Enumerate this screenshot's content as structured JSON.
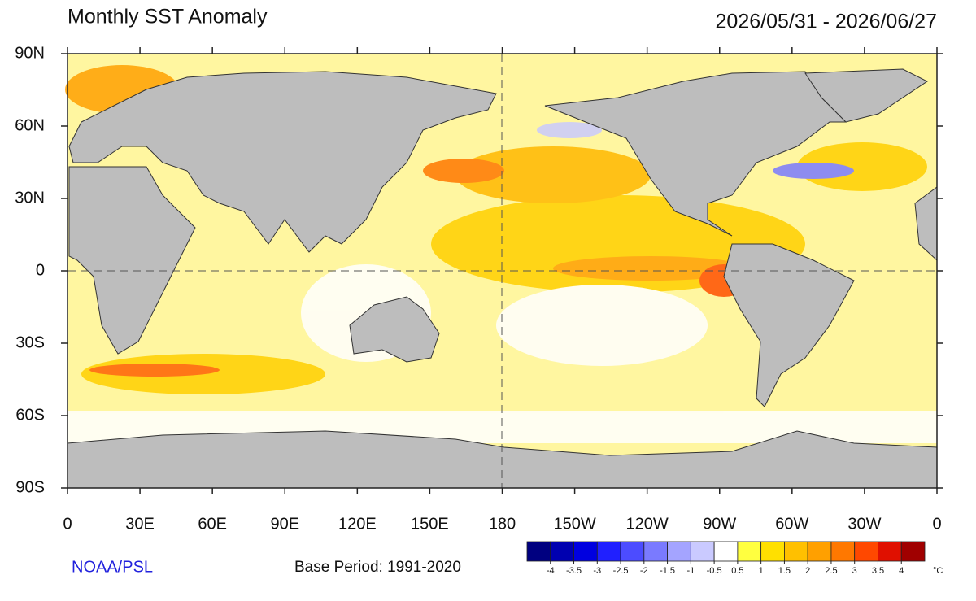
{
  "title": "Monthly SST Anomaly",
  "date_range": "2026/05/31 - 2026/06/27",
  "attribution": "NOAA/PSL",
  "base_period": "Base Period: 1991-2020",
  "map": {
    "lat_range": [
      -90,
      90
    ],
    "lon_range": [
      0,
      360
    ],
    "lat_ticks": [
      {
        "value": 90,
        "label": "90N"
      },
      {
        "value": 60,
        "label": "60N"
      },
      {
        "value": 30,
        "label": "30N"
      },
      0,
      {
        "value": -30,
        "label": "30S"
      },
      {
        "value": -60,
        "label": "60S"
      },
      {
        "value": -90,
        "label": "90S"
      }
    ],
    "lon_ticks": [
      0,
      {
        "value": 30,
        "label": "30E"
      },
      {
        "value": 60,
        "label": "60E"
      },
      {
        "value": 90,
        "label": "90E"
      },
      {
        "value": 120,
        "label": "120E"
      },
      {
        "value": 150,
        "label": "150E"
      },
      180,
      {
        "value": 210,
        "label": "150W"
      },
      {
        "value": 240,
        "label": "120W"
      },
      {
        "value": 270,
        "label": "90W"
      },
      {
        "value": 300,
        "label": "60W"
      },
      {
        "value": 330,
        "label": "30W"
      },
      {
        "value": 360,
        "label": "0"
      }
    ]
  },
  "colorbar": {
    "ticks": [
      -4,
      -3.5,
      -3,
      -2.5,
      -2,
      -1.5,
      -1,
      -0.5,
      0.5,
      1,
      1.5,
      2,
      2.5,
      3,
      3.5,
      4
    ],
    "colors": [
      "#000080",
      "#0000b0",
      "#0000e0",
      "#2020ff",
      "#4c4cff",
      "#7a7aff",
      "#a4a4ff",
      "#cacaff",
      "#ffffff",
      "#ffff40",
      "#ffe000",
      "#ffc000",
      "#ffa000",
      "#ff7800",
      "#ff4800",
      "#e01000",
      "#a00000"
    ],
    "unit": "°C"
  }
}
